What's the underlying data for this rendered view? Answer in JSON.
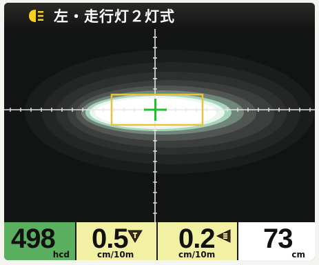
{
  "header": {
    "title": "左・走行灯２灯式",
    "icon": "headlight-icon"
  },
  "readouts": {
    "intensity": {
      "value": "498",
      "unit": "hcd"
    },
    "vertical": {
      "value": "0.5",
      "unit": "cm/10m",
      "icon": "vertical-direction-icon"
    },
    "horizontal": {
      "value": "0.2",
      "unit": "cm/10m",
      "icon": "horizontal-direction-icon"
    },
    "distance": {
      "value": "73",
      "unit": "cm"
    }
  },
  "colors": {
    "intensity_bg": "#5ab05e",
    "angle_bg": "#f1f0a3",
    "distance_bg": "#ffffff",
    "crosshair": "#1fbf2e",
    "target_box": "#e8c23a",
    "icon_yellow": "#f5d21e"
  }
}
